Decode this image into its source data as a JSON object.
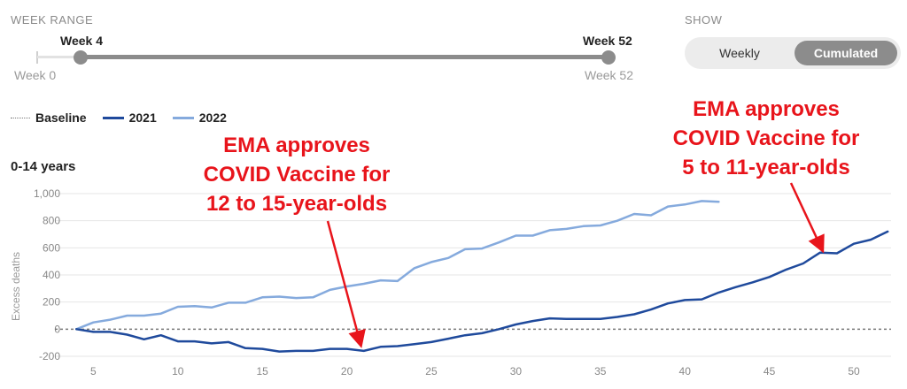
{
  "controls": {
    "week_range_caption": "WEEK RANGE",
    "range_start_label": "Week 4",
    "range_end_label": "Week 52",
    "range_min_label": "Week 0",
    "range_max_label": "Week 52",
    "show_caption": "SHOW",
    "toggle_options": [
      "Weekly",
      "Cumulated"
    ],
    "toggle_selected": "Cumulated"
  },
  "legend": {
    "items": [
      {
        "label": "Baseline",
        "color": "#777777",
        "style": "dotted"
      },
      {
        "label": "2021",
        "color": "#1f4a9c",
        "style": "solid"
      },
      {
        "label": "2022",
        "color": "#85aadd",
        "style": "solid"
      }
    ]
  },
  "annotations": [
    {
      "lines": [
        "EMA approves",
        "COVID Vaccine for",
        "12 to 15-year-olds"
      ],
      "color": "#e8141b",
      "arrow_target": {
        "week": 21,
        "value": -155
      }
    },
    {
      "lines": [
        "EMA approves",
        "COVID Vaccine for",
        "5 to 11-year-olds"
      ],
      "color": "#e8141b",
      "arrow_target": {
        "week": 48,
        "value": 565
      }
    }
  ],
  "chart_data": {
    "type": "line",
    "title": "0-14 years",
    "xlabel": "",
    "ylabel": "Excess deaths",
    "xlim": [
      4.3,
      52.2
    ],
    "ylim": [
      -200,
      1000
    ],
    "x_ticks": [
      5,
      10,
      15,
      20,
      25,
      30,
      35,
      40,
      45,
      50
    ],
    "y_ticks": [
      -200,
      0,
      200,
      400,
      600,
      800,
      1000
    ],
    "y_tick_labels": [
      "-200",
      "0",
      "200",
      "400",
      "600",
      "800",
      "1,000"
    ],
    "grid": "horizontal",
    "legend_position": "top-left",
    "baseline": {
      "name": "Baseline",
      "value": 0
    },
    "series": [
      {
        "name": "2021",
        "color": "#1f4a9c",
        "x": [
          4,
          5,
          6,
          7,
          8,
          9,
          10,
          11,
          12,
          13,
          14,
          15,
          16,
          17,
          18,
          19,
          20,
          21,
          22,
          23,
          24,
          25,
          26,
          27,
          28,
          29,
          30,
          31,
          32,
          33,
          34,
          35,
          36,
          37,
          38,
          39,
          40,
          41,
          42,
          43,
          44,
          45,
          46,
          47,
          48,
          49,
          50,
          51,
          52
        ],
        "y": [
          0,
          -20,
          -20,
          -40,
          -75,
          -45,
          -90,
          -90,
          -105,
          -95,
          -140,
          -145,
          -165,
          -160,
          -160,
          -145,
          -145,
          -160,
          -130,
          -125,
          -110,
          -95,
          -70,
          -45,
          -30,
          0,
          35,
          60,
          80,
          75,
          75,
          75,
          90,
          110,
          145,
          190,
          215,
          220,
          270,
          310,
          345,
          385,
          440,
          485,
          565,
          560,
          630,
          660,
          720
        ]
      },
      {
        "name": "2022",
        "color": "#85aadd",
        "x": [
          4,
          5,
          6,
          7,
          8,
          9,
          10,
          11,
          12,
          13,
          14,
          15,
          16,
          17,
          18,
          19,
          20,
          21,
          22,
          23,
          24,
          25,
          26,
          27,
          28,
          29,
          30,
          31,
          32,
          33,
          34,
          35,
          36,
          37,
          38,
          39,
          40,
          41,
          42
        ],
        "y": [
          0,
          50,
          70,
          100,
          100,
          115,
          165,
          170,
          160,
          195,
          195,
          235,
          240,
          230,
          235,
          290,
          315,
          335,
          360,
          355,
          450,
          495,
          525,
          590,
          595,
          640,
          690,
          690,
          730,
          740,
          760,
          765,
          800,
          850,
          840,
          905,
          920,
          945,
          940
        ]
      }
    ]
  }
}
